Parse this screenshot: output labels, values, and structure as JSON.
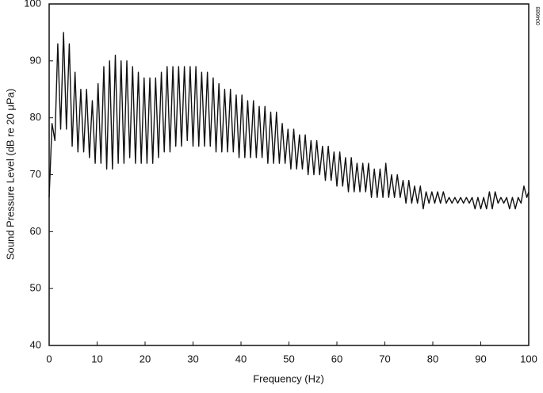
{
  "chart_data": {
    "type": "line",
    "ylabel": "Sound Pressure Level (dB re 20 μPa)",
    "xlabel": "Frequency (Hz)",
    "annotation": "004689",
    "color": "#111111",
    "xlim": [
      0,
      100
    ],
    "xticks": [
      0,
      10,
      20,
      30,
      40,
      50,
      60,
      70,
      80,
      90,
      100
    ],
    "ylim": [
      40,
      100
    ],
    "yticks": [
      40,
      50,
      60,
      70,
      80,
      90,
      100
    ],
    "grid": false,
    "x": [
      0,
      0.6,
      1.2,
      1.8,
      2.4,
      3.0,
      3.6,
      4.2,
      4.8,
      5.4,
      6.0,
      6.6,
      7.2,
      7.8,
      8.4,
      9.0,
      9.6,
      10.2,
      10.8,
      11.4,
      12.0,
      12.6,
      13.2,
      13.8,
      14.4,
      15.0,
      15.6,
      16.2,
      16.8,
      17.4,
      18.0,
      18.6,
      19.2,
      19.8,
      20.4,
      21.0,
      21.6,
      22.2,
      22.8,
      23.4,
      24.0,
      24.6,
      25.2,
      25.8,
      26.4,
      27.0,
      27.6,
      28.2,
      28.8,
      29.4,
      30.0,
      30.6,
      31.2,
      31.8,
      32.4,
      33.0,
      33.6,
      34.2,
      34.8,
      35.4,
      36.0,
      36.6,
      37.2,
      37.8,
      38.4,
      39.0,
      39.6,
      40.2,
      40.8,
      41.4,
      42.0,
      42.6,
      43.2,
      43.8,
      44.4,
      45.0,
      45.6,
      46.2,
      46.8,
      47.4,
      48.0,
      48.6,
      49.2,
      49.8,
      50.4,
      51.0,
      51.6,
      52.2,
      52.8,
      53.4,
      54.0,
      54.6,
      55.2,
      55.8,
      56.4,
      57.0,
      57.6,
      58.2,
      58.8,
      59.4,
      60.0,
      60.6,
      61.2,
      61.8,
      62.4,
      63.0,
      63.6,
      64.2,
      64.8,
      65.4,
      66.0,
      66.6,
      67.2,
      67.8,
      68.4,
      69.0,
      69.6,
      70.2,
      70.8,
      71.4,
      72.0,
      72.6,
      73.2,
      73.8,
      74.4,
      75.0,
      75.6,
      76.2,
      76.8,
      77.4,
      78.0,
      78.6,
      79.2,
      79.8,
      80.4,
      81.0,
      81.6,
      82.2,
      82.8,
      83.4,
      84.0,
      84.6,
      85.2,
      85.8,
      86.4,
      87.0,
      87.6,
      88.2,
      88.8,
      89.4,
      90.0,
      90.6,
      91.2,
      91.8,
      92.4,
      93.0,
      93.6,
      94.2,
      94.8,
      95.4,
      96.0,
      96.6,
      97.2,
      97.8,
      98.4,
      99.0,
      99.6,
      100
    ],
    "values": [
      66,
      79,
      76,
      93,
      78,
      95,
      78,
      93,
      75,
      88,
      74,
      85,
      74,
      85,
      73,
      83,
      72,
      86,
      72,
      89,
      71,
      90,
      71,
      91,
      72,
      90,
      72,
      90,
      73,
      89,
      72,
      88,
      72,
      87,
      72,
      87,
      72,
      87,
      73,
      88,
      74,
      89,
      74,
      89,
      75,
      89,
      75,
      89,
      76,
      89,
      75,
      89,
      75,
      88,
      75,
      88,
      75,
      87,
      74,
      86,
      74,
      85,
      74,
      85,
      74,
      84,
      73,
      84,
      73,
      83,
      73,
      83,
      73,
      82,
      73,
      82,
      72,
      81,
      72,
      81,
      72,
      79,
      72,
      78,
      71,
      78,
      71,
      77,
      71,
      77,
      70,
      76,
      70,
      76,
      70,
      75,
      69,
      75,
      69,
      74,
      68,
      74,
      68,
      73,
      67,
      73,
      67,
      72,
      67,
      72,
      67,
      72,
      66,
      71,
      66,
      71,
      66,
      72,
      66,
      70,
      66,
      70,
      66,
      69,
      65,
      69,
      65,
      68,
      65,
      68,
      64,
      67,
      65,
      67,
      65,
      67,
      65,
      67,
      65,
      66,
      65,
      66,
      65,
      66,
      65,
      66,
      65,
      66,
      64,
      66,
      64,
      66,
      64,
      67,
      64,
      67,
      65,
      66,
      65,
      66,
      64,
      66,
      64,
      66,
      65,
      68,
      66,
      67
    ]
  }
}
